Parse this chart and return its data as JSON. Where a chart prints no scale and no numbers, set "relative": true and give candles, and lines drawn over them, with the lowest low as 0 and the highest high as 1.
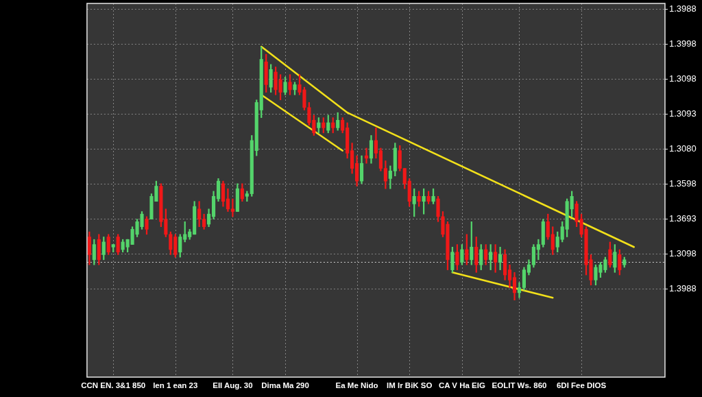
{
  "chart_data": {
    "type": "candlestick",
    "relative": true,
    "categories": [
      null,
      null,
      null,
      null,
      null,
      "CCN EN. 3&1 850",
      null,
      null,
      null,
      null,
      null,
      null,
      null,
      null,
      null,
      null,
      null,
      null,
      "len 1 ean 23",
      null,
      null,
      null,
      null,
      null,
      null,
      null,
      null,
      null,
      null,
      null,
      "EII Aug. 30",
      null,
      null,
      null,
      null,
      null,
      null,
      null,
      null,
      null,
      null,
      "Dima Ma 290",
      null,
      null,
      null,
      null,
      null,
      null,
      null,
      null,
      null,
      null,
      null,
      null,
      null,
      null,
      "Ea Me Nido",
      null,
      null,
      null,
      null,
      null,
      null,
      null,
      null,
      null,
      null,
      "IM Ir BiK SO",
      null,
      null,
      null,
      null,
      null,
      null,
      null,
      null,
      null,
      null,
      "CA V Ha EIG",
      null,
      null,
      null,
      null,
      null,
      null,
      null,
      null,
      null,
      null,
      null,
      "EOLIT Ws. 860",
      null,
      null,
      null,
      null,
      null,
      null,
      null,
      null,
      null,
      null,
      null,
      null,
      "6DI Fee DIOS",
      null,
      null,
      null,
      null,
      null,
      null,
      null,
      null,
      null,
      null,
      null,
      null,
      null,
      null,
      null,
      null,
      null
    ],
    "ohlc": [
      [
        0.25,
        0.27,
        0.14,
        0.18
      ],
      [
        0.16,
        0.24,
        0.14,
        0.22
      ],
      [
        0.24,
        0.26,
        0.14,
        0.16
      ],
      [
        0.18,
        0.25,
        0.16,
        0.23
      ],
      [
        0.25,
        0.26,
        0.18,
        0.19
      ],
      [
        0.21,
        0.22,
        0.19,
        0.22
      ],
      [
        0.25,
        0.26,
        0.18,
        0.19
      ],
      [
        0.2,
        0.24,
        0.19,
        0.23
      ],
      [
        0.21,
        0.24,
        0.19,
        0.24
      ],
      [
        0.22,
        0.29,
        0.22,
        0.28
      ],
      [
        0.26,
        0.32,
        0.25,
        0.31
      ],
      [
        0.29,
        0.35,
        0.28,
        0.34
      ],
      [
        0.32,
        0.33,
        0.26,
        0.28
      ],
      [
        0.32,
        0.42,
        0.32,
        0.41
      ],
      [
        0.39,
        0.47,
        0.39,
        0.45
      ],
      [
        0.45,
        0.46,
        0.29,
        0.31
      ],
      [
        0.32,
        0.36,
        0.25,
        0.26
      ],
      [
        0.26,
        0.27,
        0.18,
        0.2
      ],
      [
        0.25,
        0.26,
        0.17,
        0.18
      ],
      [
        0.19,
        0.26,
        0.17,
        0.25
      ],
      [
        0.24,
        0.31,
        0.23,
        0.26
      ],
      [
        0.25,
        0.28,
        0.24,
        0.27
      ],
      [
        0.26,
        0.39,
        0.26,
        0.37
      ],
      [
        0.36,
        0.39,
        0.29,
        0.32
      ],
      [
        0.32,
        0.34,
        0.28,
        0.29
      ],
      [
        0.3,
        0.36,
        0.29,
        0.34
      ],
      [
        0.33,
        0.43,
        0.32,
        0.41
      ],
      [
        0.4,
        0.48,
        0.39,
        0.47
      ],
      [
        0.46,
        0.47,
        0.37,
        0.39
      ],
      [
        0.4,
        0.44,
        0.35,
        0.36
      ],
      [
        0.36,
        0.4,
        0.33,
        0.35
      ],
      [
        0.35,
        0.46,
        0.35,
        0.44
      ],
      [
        0.44,
        0.46,
        0.39,
        0.4
      ],
      [
        0.41,
        0.43,
        0.39,
        0.42
      ],
      [
        0.42,
        0.65,
        0.41,
        0.63
      ],
      [
        0.59,
        0.79,
        0.57,
        0.78
      ],
      [
        0.75,
        1.0,
        0.72,
        0.95
      ],
      [
        0.94,
        0.97,
        0.82,
        0.85
      ],
      [
        0.84,
        0.93,
        0.82,
        0.91
      ],
      [
        0.9,
        0.92,
        0.81,
        0.83
      ],
      [
        0.87,
        0.89,
        0.79,
        0.82
      ],
      [
        0.82,
        0.88,
        0.81,
        0.86
      ],
      [
        0.86,
        0.89,
        0.81,
        0.83
      ],
      [
        0.83,
        0.86,
        0.81,
        0.85
      ],
      [
        0.85,
        0.89,
        0.81,
        0.82
      ],
      [
        0.83,
        0.84,
        0.75,
        0.76
      ],
      [
        0.76,
        0.78,
        0.69,
        0.7
      ],
      [
        0.71,
        0.73,
        0.65,
        0.66
      ],
      [
        0.68,
        0.72,
        0.66,
        0.7
      ],
      [
        0.7,
        0.72,
        0.66,
        0.68
      ],
      [
        0.67,
        0.73,
        0.66,
        0.7
      ],
      [
        0.7,
        0.72,
        0.66,
        0.68
      ],
      [
        0.68,
        0.74,
        0.67,
        0.71
      ],
      [
        0.71,
        0.72,
        0.66,
        0.67
      ],
      [
        0.68,
        0.7,
        0.56,
        0.58
      ],
      [
        0.59,
        0.62,
        0.5,
        0.52
      ],
      [
        0.54,
        0.57,
        0.45,
        0.47
      ],
      [
        0.47,
        0.57,
        0.46,
        0.54
      ],
      [
        0.57,
        0.6,
        0.54,
        0.56
      ],
      [
        0.56,
        0.65,
        0.54,
        0.63
      ],
      [
        0.63,
        0.68,
        0.56,
        0.58
      ],
      [
        0.59,
        0.6,
        0.51,
        0.52
      ],
      [
        0.52,
        0.55,
        0.44,
        0.47
      ],
      [
        0.48,
        0.53,
        0.44,
        0.51
      ],
      [
        0.51,
        0.62,
        0.49,
        0.6
      ],
      [
        0.59,
        0.61,
        0.51,
        0.52
      ],
      [
        0.52,
        0.52,
        0.44,
        0.46
      ],
      [
        0.47,
        0.48,
        0.37,
        0.39
      ],
      [
        0.38,
        0.44,
        0.33,
        0.41
      ],
      [
        0.41,
        0.43,
        0.37,
        0.39
      ],
      [
        0.39,
        0.44,
        0.34,
        0.41
      ],
      [
        0.41,
        0.43,
        0.38,
        0.39
      ],
      [
        0.39,
        0.44,
        0.38,
        0.41
      ],
      [
        0.4,
        0.41,
        0.31,
        0.33
      ],
      [
        0.33,
        0.35,
        0.25,
        0.26
      ],
      [
        0.3,
        0.31,
        0.12,
        0.16
      ],
      [
        0.12,
        0.21,
        0.11,
        0.19
      ],
      [
        0.19,
        0.22,
        0.12,
        0.14
      ],
      [
        0.15,
        0.22,
        0.14,
        0.2
      ],
      [
        0.2,
        0.26,
        0.14,
        0.16
      ],
      [
        0.16,
        0.31,
        0.14,
        0.21
      ],
      [
        0.21,
        0.25,
        0.11,
        0.14
      ],
      [
        0.14,
        0.22,
        0.12,
        0.2
      ],
      [
        0.2,
        0.22,
        0.14,
        0.16
      ],
      [
        0.16,
        0.22,
        0.12,
        0.19
      ],
      [
        0.19,
        0.22,
        0.11,
        0.15
      ],
      [
        0.15,
        0.21,
        0.12,
        0.18
      ],
      [
        0.18,
        0.2,
        0.08,
        0.1
      ],
      [
        0.12,
        0.14,
        0.05,
        0.08
      ],
      [
        0.09,
        0.11,
        0.0,
        0.03
      ],
      [
        0.03,
        0.07,
        0.01,
        0.05
      ],
      [
        0.05,
        0.13,
        0.04,
        0.12
      ],
      [
        0.11,
        0.16,
        0.1,
        0.14
      ],
      [
        0.14,
        0.22,
        0.13,
        0.21
      ],
      [
        0.2,
        0.24,
        0.16,
        0.22
      ],
      [
        0.22,
        0.32,
        0.21,
        0.31
      ],
      [
        0.31,
        0.34,
        0.24,
        0.25
      ],
      [
        0.26,
        0.29,
        0.18,
        0.2
      ],
      [
        0.21,
        0.27,
        0.19,
        0.25
      ],
      [
        0.24,
        0.31,
        0.23,
        0.29
      ],
      [
        0.28,
        0.4,
        0.25,
        0.39
      ],
      [
        0.36,
        0.43,
        0.33,
        0.41
      ],
      [
        0.38,
        0.39,
        0.29,
        0.31
      ],
      [
        0.32,
        0.34,
        0.25,
        0.26
      ],
      [
        0.28,
        0.29,
        0.1,
        0.14
      ],
      [
        0.16,
        0.18,
        0.06,
        0.08
      ],
      [
        0.08,
        0.14,
        0.06,
        0.13
      ],
      [
        0.11,
        0.15,
        0.09,
        0.14
      ],
      [
        0.12,
        0.17,
        0.11,
        0.16
      ],
      [
        0.2,
        0.23,
        0.13,
        0.14
      ],
      [
        0.13,
        0.22,
        0.11,
        0.19
      ],
      [
        0.18,
        0.2,
        0.1,
        0.12
      ],
      [
        0.14,
        0.17,
        0.13,
        0.16
      ],
      null,
      null,
      null,
      null,
      null,
      null,
      null,
      null
    ],
    "colors": [
      "#f01818",
      "#54d46b",
      "#f01818",
      "#54d46b",
      "#f01818",
      "#54d46b",
      "#f01818",
      "#54d46b",
      "#54d46b",
      "#54d46b",
      "#54d46b",
      "#54d46b",
      "#f01818",
      "#54d46b",
      "#54d46b",
      "#f01818",
      "#f01818",
      "#f01818",
      "#f01818",
      "#54d46b",
      "#54d46b",
      "#54d46b",
      "#54d46b",
      "#f01818",
      "#f01818",
      "#54d46b",
      "#54d46b",
      "#54d46b",
      "#f01818",
      "#f01818",
      "#f01818",
      "#54d46b",
      "#f01818",
      "#54d46b",
      "#54d46b",
      "#54d46b",
      "#54d46b",
      "#f01818",
      "#54d46b",
      "#f01818",
      "#f01818",
      "#54d46b",
      "#f01818",
      "#54d46b",
      "#f01818",
      "#f01818",
      "#f01818",
      "#f01818",
      "#54d46b",
      "#f01818",
      "#54d46b",
      "#f01818",
      "#54d46b",
      "#f01818",
      "#f01818",
      "#f01818",
      "#f01818",
      "#54d46b",
      "#f01818",
      "#54d46b",
      "#f01818",
      "#f01818",
      "#f01818",
      "#54d46b",
      "#54d46b",
      "#f01818",
      "#f01818",
      "#f01818",
      "#54d46b",
      "#f01818",
      "#54d46b",
      "#f01818",
      "#54d46b",
      "#f01818",
      "#f01818",
      "#f01818",
      "#54d46b",
      "#f01818",
      "#54d46b",
      "#f01818",
      "#54d46b",
      "#f01818",
      "#54d46b",
      "#f01818",
      "#54d46b",
      "#f01818",
      "#54d46b",
      "#f01818",
      "#f01818",
      "#f01818",
      "#54d46b",
      "#54d46b",
      "#54d46b",
      "#54d46b",
      "#54d46b",
      "#54d46b",
      "#f01818",
      "#f01818",
      "#54d46b",
      "#54d46b",
      "#54d46b",
      "#54d46b",
      "#f01818",
      "#f01818",
      "#f01818",
      "#f01818",
      "#54d46b",
      "#54d46b",
      "#54d46b",
      "#f01818",
      "#54d46b",
      "#f01818",
      "#54d46b",
      null,
      null,
      null,
      null,
      null,
      null,
      null,
      null
    ],
    "series": [
      {
        "type": "line",
        "color": "#f2e01a",
        "values": [
          null,
          null,
          null,
          null,
          null,
          null,
          null,
          null,
          null,
          null,
          null,
          null,
          null,
          null,
          null,
          null,
          null,
          null,
          null,
          null,
          null,
          null,
          null,
          null,
          null,
          null,
          null,
          null,
          null,
          null,
          null,
          null,
          null,
          null,
          null,
          null,
          1.0,
          null,
          null,
          null,
          null,
          null,
          null,
          null,
          null,
          null,
          null,
          null,
          null,
          null,
          null,
          null,
          null,
          null,
          0.74,
          null,
          null,
          null,
          null,
          null,
          null,
          null,
          null,
          null,
          null,
          null,
          null,
          null,
          null,
          null,
          null,
          null,
          null,
          null,
          null,
          null,
          null,
          null,
          null,
          null,
          null,
          null,
          null,
          null,
          null,
          null,
          null,
          null,
          null,
          null,
          null,
          null,
          null,
          null,
          null,
          null,
          null,
          null,
          null,
          null,
          null,
          null,
          null,
          null,
          null,
          null,
          null,
          null,
          null,
          null,
          null,
          null,
          null,
          null,
          0.21,
          null,
          null,
          null,
          null,
          null,
          null
        ]
      },
      {
        "type": "line",
        "color": "#f2e01a",
        "values": [
          null,
          null,
          null,
          null,
          null,
          null,
          null,
          null,
          null,
          null,
          null,
          null,
          null,
          null,
          null,
          null,
          null,
          null,
          null,
          null,
          null,
          null,
          null,
          null,
          null,
          null,
          null,
          null,
          null,
          null,
          null,
          null,
          null,
          null,
          null,
          null,
          0.81,
          null,
          null,
          null,
          null,
          null,
          null,
          null,
          null,
          null,
          null,
          null,
          null,
          null,
          null,
          null,
          null,
          0.59,
          null,
          null,
          null,
          null,
          null,
          null,
          null,
          null,
          null,
          null,
          null,
          null,
          null,
          null,
          null,
          null,
          null,
          null,
          null,
          null,
          null,
          null,
          null,
          null,
          null,
          null,
          null,
          null,
          null,
          null,
          null,
          null,
          null,
          null,
          null,
          null,
          null,
          null,
          null,
          null,
          null,
          null,
          null,
          null,
          null,
          null,
          null,
          null,
          null,
          null,
          null,
          null,
          null,
          null,
          null,
          null,
          null,
          null,
          null,
          null,
          null,
          null,
          null,
          null,
          null,
          null,
          null
        ]
      },
      {
        "type": "line",
        "color": "#f2e01a",
        "values": [
          null,
          null,
          null,
          null,
          null,
          null,
          null,
          null,
          null,
          null,
          null,
          null,
          null,
          null,
          null,
          null,
          null,
          null,
          null,
          null,
          null,
          null,
          null,
          null,
          null,
          null,
          null,
          null,
          null,
          null,
          null,
          null,
          null,
          null,
          null,
          null,
          null,
          null,
          null,
          null,
          null,
          null,
          null,
          null,
          null,
          null,
          null,
          null,
          null,
          null,
          null,
          null,
          null,
          null,
          null,
          null,
          null,
          null,
          null,
          null,
          null,
          null,
          null,
          null,
          null,
          null,
          null,
          null,
          null,
          null,
          null,
          null,
          null,
          null,
          null,
          null,
          0.11,
          null,
          null,
          null,
          null,
          null,
          null,
          null,
          null,
          null,
          null,
          null,
          null,
          null,
          null,
          null,
          null,
          null,
          null,
          null,
          null,
          0.01,
          null,
          null,
          null,
          null,
          null,
          null,
          null,
          null,
          null,
          null,
          null,
          null,
          null,
          null,
          null,
          null,
          null,
          null,
          null,
          null,
          null,
          null,
          null
        ]
      }
    ],
    "ref_lines": [
      {
        "axis": "y",
        "value": 0.15,
        "color": "#d0d0d0",
        "line_style": "dotted"
      }
    ],
    "annotations": [
      "1.3988",
      "1.3998",
      "1.3098",
      "1.3093",
      "1.3080",
      "1.3598",
      "1.3693",
      "1.3098",
      "1.3988"
    ],
    "grid": true
  }
}
